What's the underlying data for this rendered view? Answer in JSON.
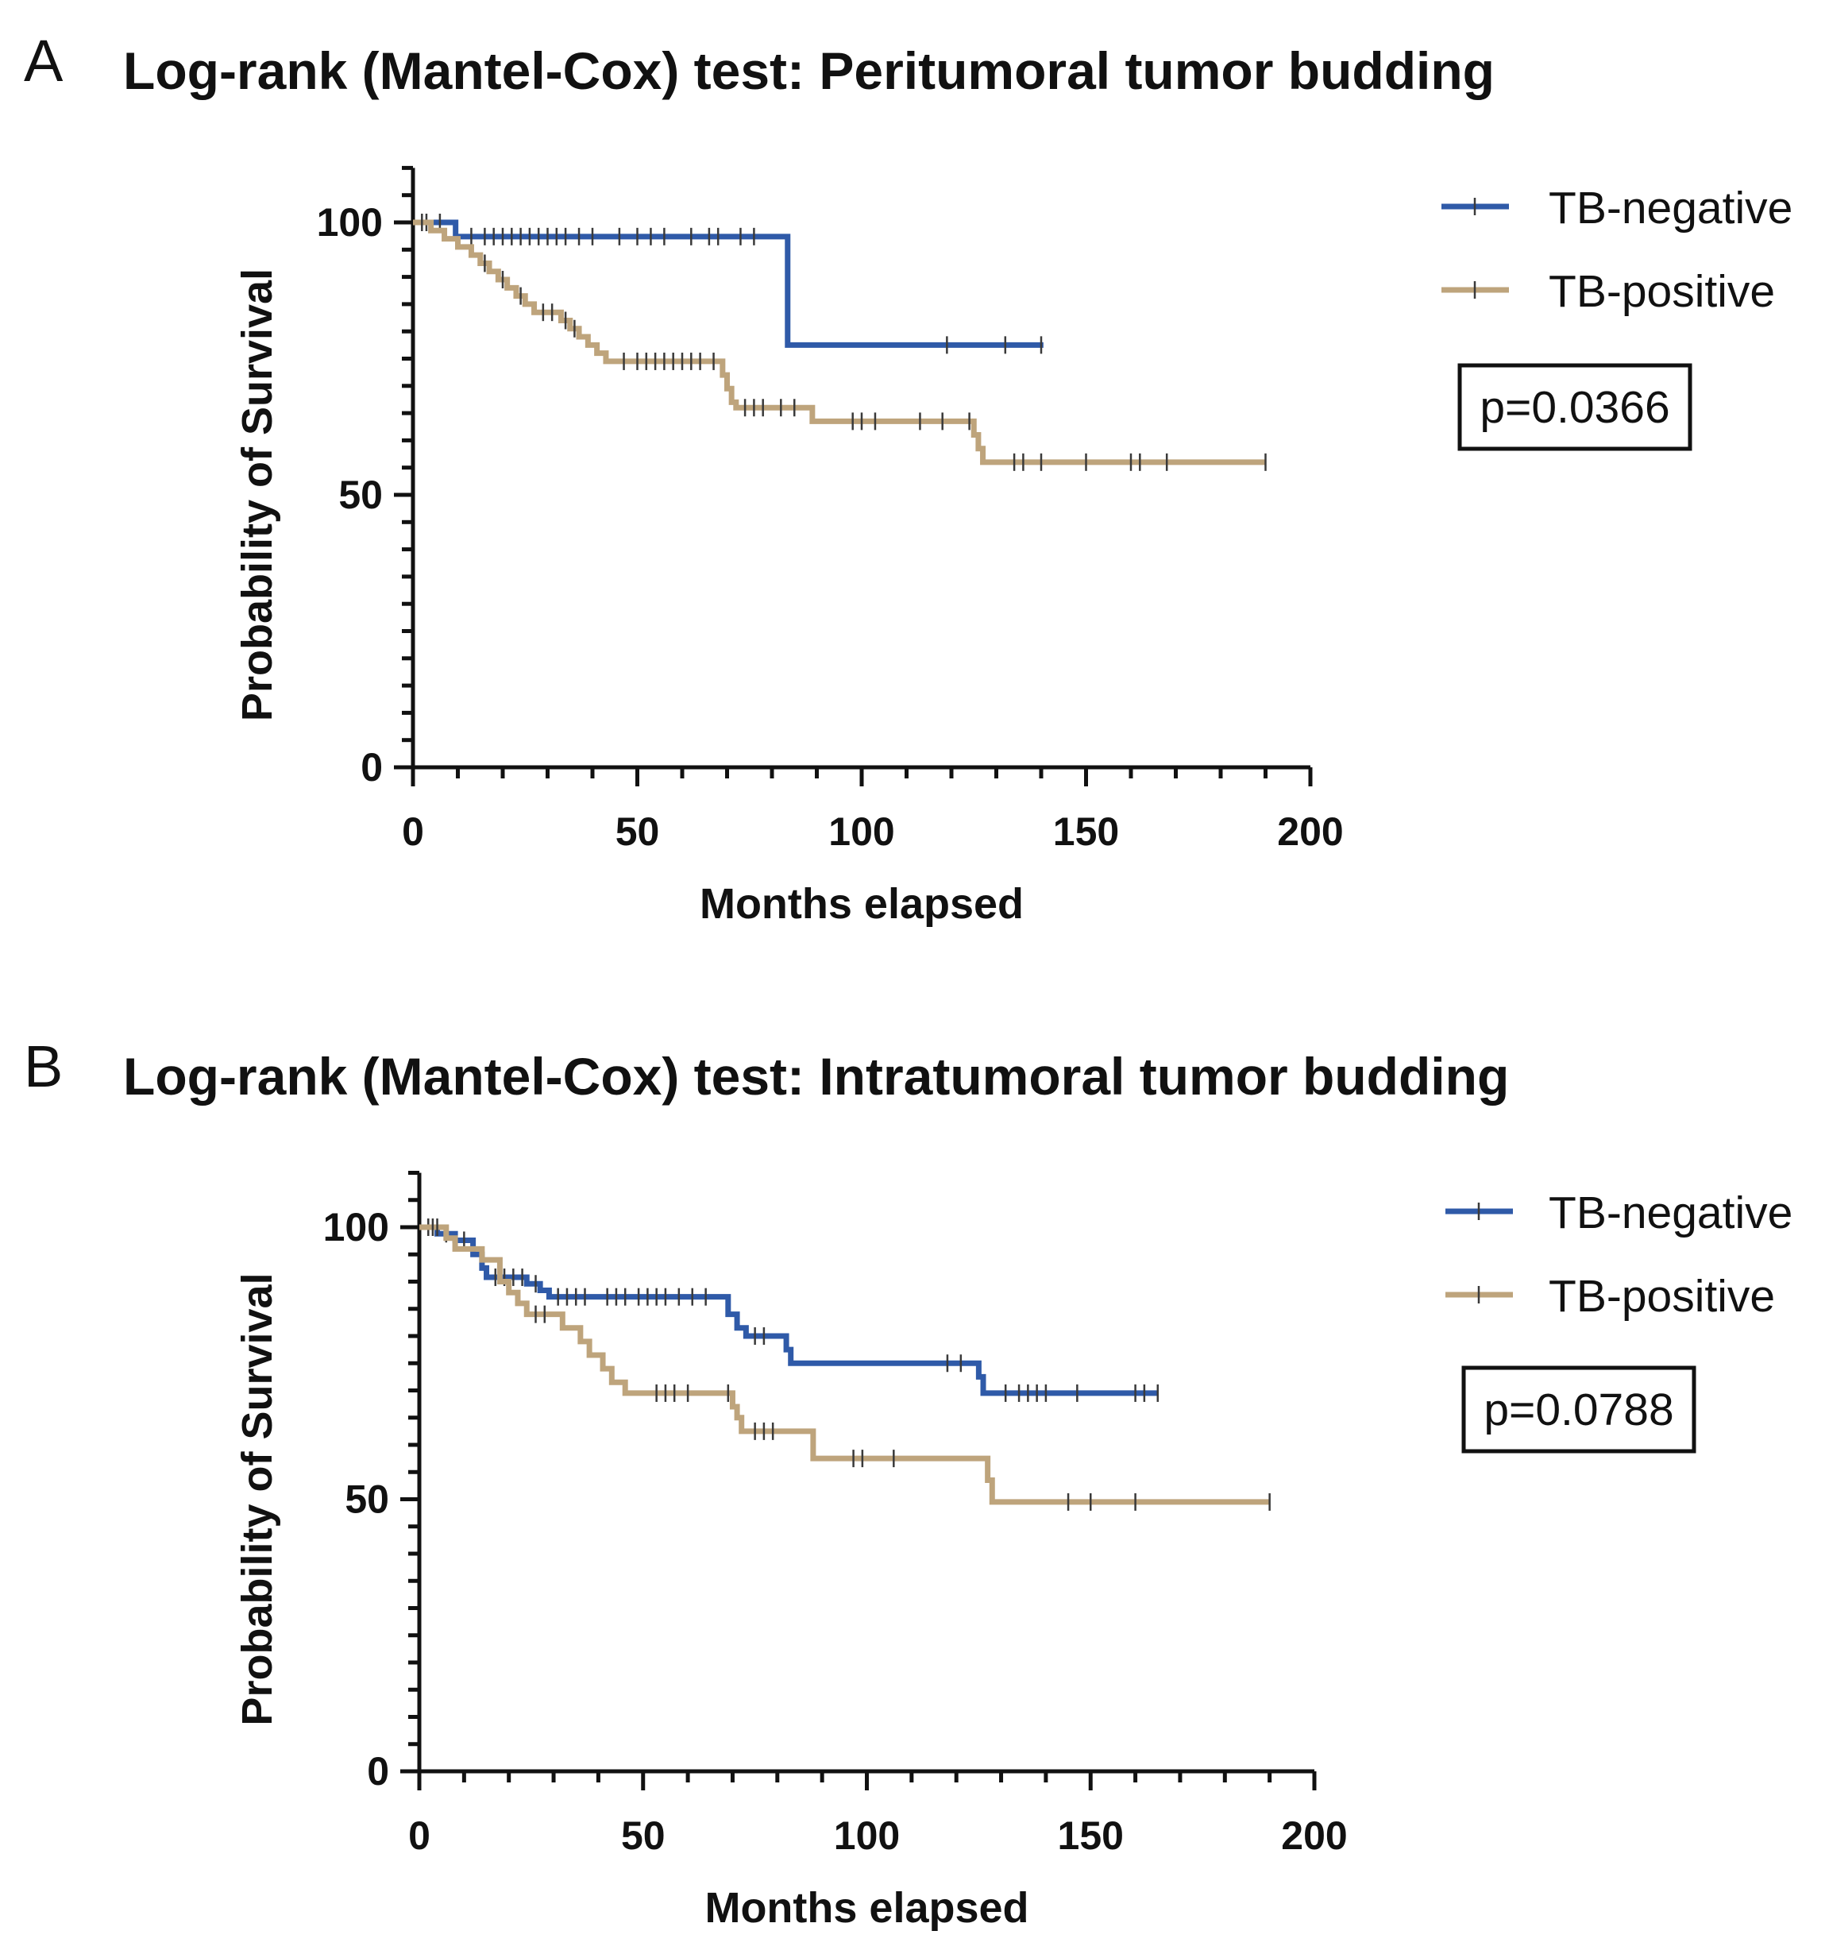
{
  "chart_data": [
    {
      "type": "line",
      "subtype": "kaplan-meier",
      "panel_label": "A",
      "title": "Log-rank (Mantel-Cox) test: Peritumoral tumor budding",
      "xlabel": "Months elapsed",
      "ylabel": "Probability of Survival",
      "xlim": [
        0,
        200
      ],
      "ylim": [
        0,
        110
      ],
      "xticks": [
        0,
        50,
        100,
        150,
        200
      ],
      "yticks": [
        0,
        50,
        100
      ],
      "legend_position": "top-right",
      "pvalue": "p=0.0366",
      "series": [
        {
          "name": "TB-negative",
          "color": "#2f5aa8",
          "steps": [
            [
              0,
              100
            ],
            [
              9.5,
              97.4
            ],
            [
              83.5,
              77.5
            ],
            [
              140.5,
              77.5
            ]
          ],
          "censored": [
            [
              3,
              100
            ],
            [
              6,
              100
            ],
            [
              13,
              97.4
            ],
            [
              16,
              97.4
            ],
            [
              18,
              97.4
            ],
            [
              20,
              97.4
            ],
            [
              22,
              97.4
            ],
            [
              24,
              97.4
            ],
            [
              26,
              97.4
            ],
            [
              28,
              97.4
            ],
            [
              30,
              97.4
            ],
            [
              32,
              97.4
            ],
            [
              34,
              97.4
            ],
            [
              37,
              97.4
            ],
            [
              40,
              97.4
            ],
            [
              46,
              97.4
            ],
            [
              50,
              97.4
            ],
            [
              53,
              97.4
            ],
            [
              56,
              97.4
            ],
            [
              62,
              97.4
            ],
            [
              66,
              97.4
            ],
            [
              68,
              97.4
            ],
            [
              73,
              97.4
            ],
            [
              76,
              97.4
            ],
            [
              119,
              77.5
            ],
            [
              132,
              77.5
            ],
            [
              140,
              77.5
            ]
          ]
        },
        {
          "name": "TB-positive",
          "color": "#bea47c",
          "steps": [
            [
              0,
              100
            ],
            [
              4,
              98.5
            ],
            [
              7,
              97
            ],
            [
              10,
              95.5
            ],
            [
              13,
              94
            ],
            [
              15,
              92.5
            ],
            [
              17,
              91
            ],
            [
              19,
              89.5
            ],
            [
              21,
              88
            ],
            [
              23,
              86.5
            ],
            [
              25,
              85
            ],
            [
              27,
              83.5
            ],
            [
              33,
              82
            ],
            [
              35,
              80.5
            ],
            [
              37,
              79
            ],
            [
              39,
              77.5
            ],
            [
              41,
              76
            ],
            [
              43,
              74.5
            ],
            [
              49,
              74.5
            ],
            [
              69,
              72
            ],
            [
              70,
              69.5
            ],
            [
              71,
              67
            ],
            [
              72,
              66
            ],
            [
              89,
              63.5
            ],
            [
              125,
              61
            ],
            [
              126,
              58.5
            ],
            [
              127,
              56
            ],
            [
              190,
              56
            ]
          ],
          "censored": [
            [
              2,
              100
            ],
            [
              16,
              92.5
            ],
            [
              20,
              89.5
            ],
            [
              24,
              86.5
            ],
            [
              29,
              83.5
            ],
            [
              31,
              83.5
            ],
            [
              34,
              82
            ],
            [
              36,
              80.5
            ],
            [
              47,
              74.5
            ],
            [
              50,
              74.5
            ],
            [
              52,
              74.5
            ],
            [
              54,
              74.5
            ],
            [
              56,
              74.5
            ],
            [
              58,
              74.5
            ],
            [
              60,
              74.5
            ],
            [
              62,
              74.5
            ],
            [
              64,
              74.5
            ],
            [
              67,
              74.5
            ],
            [
              74,
              66
            ],
            [
              76,
              66
            ],
            [
              78,
              66
            ],
            [
              82,
              66
            ],
            [
              85,
              66
            ],
            [
              98,
              63.5
            ],
            [
              100,
              63.5
            ],
            [
              103,
              63.5
            ],
            [
              113,
              63.5
            ],
            [
              118,
              63.5
            ],
            [
              124,
              63.5
            ],
            [
              134,
              56
            ],
            [
              136,
              56
            ],
            [
              140,
              56
            ],
            [
              150,
              56
            ],
            [
              160,
              56
            ],
            [
              162,
              56
            ],
            [
              168,
              56
            ],
            [
              190,
              56
            ]
          ]
        }
      ]
    },
    {
      "type": "line",
      "subtype": "kaplan-meier",
      "panel_label": "B",
      "title": "Log-rank (Mantel-Cox) test: Intratumoral tumor budding",
      "xlabel": "Months elapsed",
      "ylabel": "Probability of Survival",
      "xlim": [
        0,
        200
      ],
      "ylim": [
        0,
        110
      ],
      "xticks": [
        0,
        50,
        100,
        150,
        200
      ],
      "yticks": [
        0,
        50,
        100
      ],
      "legend_position": "top-right",
      "pvalue": "p=0.0788",
      "series": [
        {
          "name": "TB-negative",
          "color": "#2f5aa8",
          "steps": [
            [
              0,
              100
            ],
            [
              4,
              98.8
            ],
            [
              8,
              97.6
            ],
            [
              12,
              95
            ],
            [
              14,
              92.5
            ],
            [
              15,
              90.8
            ],
            [
              24,
              89.6
            ],
            [
              27,
              88.4
            ],
            [
              29,
              87.2
            ],
            [
              69,
              84
            ],
            [
              71,
              81.5
            ],
            [
              73,
              80
            ],
            [
              82,
              77.5
            ],
            [
              83,
              75
            ],
            [
              125,
              72.5
            ],
            [
              126,
              69.5
            ],
            [
              165,
              69.5
            ]
          ],
          "censored": [
            [
              2,
              100
            ],
            [
              6,
              98.8
            ],
            [
              10,
              97.6
            ],
            [
              17,
              90.8
            ],
            [
              19,
              90.8
            ],
            [
              21,
              90.8
            ],
            [
              23,
              90.8
            ],
            [
              26,
              89.6
            ],
            [
              31,
              87.2
            ],
            [
              33,
              87.2
            ],
            [
              35,
              87.2
            ],
            [
              37,
              87.2
            ],
            [
              42,
              87.2
            ],
            [
              44,
              87.2
            ],
            [
              46,
              87.2
            ],
            [
              49,
              87.2
            ],
            [
              51,
              87.2
            ],
            [
              53,
              87.2
            ],
            [
              55,
              87.2
            ],
            [
              58,
              87.2
            ],
            [
              61,
              87.2
            ],
            [
              64,
              87.2
            ],
            [
              75,
              80
            ],
            [
              77,
              80
            ],
            [
              118,
              75
            ],
            [
              121,
              75
            ],
            [
              131,
              69.5
            ],
            [
              134,
              69.5
            ],
            [
              136,
              69.5
            ],
            [
              138,
              69.5
            ],
            [
              140,
              69.5
            ],
            [
              147,
              69.5
            ],
            [
              160,
              69.5
            ],
            [
              162,
              69.5
            ],
            [
              165,
              69.5
            ]
          ]
        },
        {
          "name": "TB-positive",
          "color": "#bea47c",
          "steps": [
            [
              0,
              100
            ],
            [
              6,
              98
            ],
            [
              8,
              96
            ],
            [
              14,
              94
            ],
            [
              18,
              90
            ],
            [
              20,
              88
            ],
            [
              22,
              86
            ],
            [
              24,
              84
            ],
            [
              32,
              81.5
            ],
            [
              36,
              79
            ],
            [
              38,
              76.5
            ],
            [
              41,
              74
            ],
            [
              43,
              71.5
            ],
            [
              46,
              69.5
            ],
            [
              70,
              67
            ],
            [
              71,
              65
            ],
            [
              72,
              62.5
            ],
            [
              88,
              57.5
            ],
            [
              127,
              53.5
            ],
            [
              128,
              49.5
            ],
            [
              190,
              49.5
            ]
          ],
          "censored": [
            [
              3,
              100
            ],
            [
              4,
              100
            ],
            [
              26,
              84
            ],
            [
              28,
              84
            ],
            [
              53,
              69.5
            ],
            [
              55,
              69.5
            ],
            [
              57,
              69.5
            ],
            [
              60,
              69.5
            ],
            [
              69,
              69.5
            ],
            [
              75,
              62.5
            ],
            [
              77,
              62.5
            ],
            [
              79,
              62.5
            ],
            [
              97,
              57.5
            ],
            [
              99,
              57.5
            ],
            [
              106,
              57.5
            ],
            [
              145,
              49.5
            ],
            [
              150,
              49.5
            ],
            [
              160,
              49.5
            ],
            [
              190,
              49.5
            ]
          ]
        }
      ]
    }
  ]
}
